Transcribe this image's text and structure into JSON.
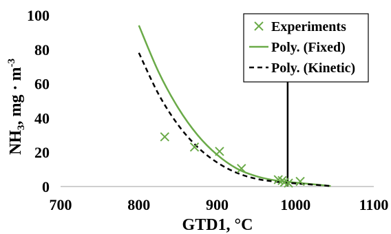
{
  "chart_data": {
    "type": "scatter",
    "xlabel": "GTD1, °C",
    "ylabel": {
      "prefix": "NH",
      "sub": "3",
      "rest": ", mg · m",
      "sup": "-3"
    },
    "xlim": [
      700,
      1100
    ],
    "ylim": [
      0,
      100
    ],
    "xticks": [
      "700",
      "800",
      "900",
      "1000",
      "1100"
    ],
    "yticks": [
      "0",
      "20",
      "40",
      "60",
      "80",
      "100"
    ],
    "grid": false,
    "legend_position": "top-right",
    "vertical_marker_x": 990,
    "series": [
      {
        "name": "Experiments",
        "kind": "marker-x",
        "color": "#6aaa48",
        "x": [
          833,
          871,
          903,
          931,
          978,
          983,
          986,
          991,
          1006
        ],
        "y": [
          29,
          23,
          20.5,
          10.5,
          4,
          3.5,
          2.5,
          2,
          3
        ]
      },
      {
        "name": "Poly. (Fixed)",
        "kind": "solid-line",
        "color": "#6aaa48",
        "x": [
          800,
          825,
          850,
          875,
          900,
          925,
          950,
          975,
          1000,
          1025,
          1045
        ],
        "y": [
          94,
          67,
          46,
          30,
          18.5,
          10.5,
          6,
          3.5,
          2.3,
          1.2,
          0.3
        ]
      },
      {
        "name": "Poly. (Kinetic)",
        "kind": "dashed-line",
        "color": "#000000",
        "x": [
          800,
          825,
          850,
          875,
          900,
          925,
          950,
          975,
          1000,
          1025,
          1045
        ],
        "y": [
          78,
          54,
          36,
          23,
          14,
          8,
          4.5,
          2.8,
          1.8,
          1.0,
          0.3
        ]
      }
    ]
  }
}
